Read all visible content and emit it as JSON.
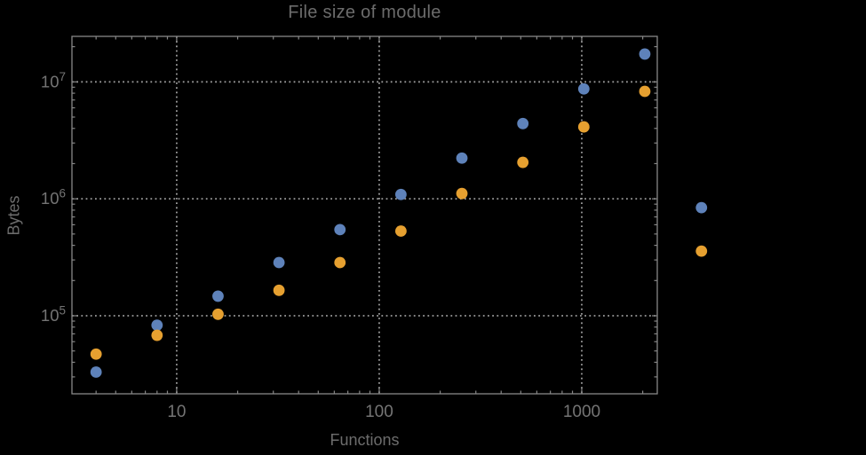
{
  "page": {
    "background": "#000000"
  },
  "chart_data": {
    "type": "scatter",
    "title": "File size of module",
    "xlabel": "Functions",
    "ylabel": "Bytes",
    "x_scale": "log",
    "y_scale": "log",
    "xlim": [
      3.04,
      2360
    ],
    "ylim": [
      21500,
      24500000
    ],
    "grid": {
      "style": "dotted",
      "x_values": [
        10,
        100,
        1000
      ],
      "y_values": [
        100000,
        1000000,
        10000000
      ],
      "color": "#9a9a9a"
    },
    "x_ticks": [
      {
        "value": 10,
        "label": "10"
      },
      {
        "value": 100,
        "label": "100"
      },
      {
        "value": 1000,
        "label": "1000"
      }
    ],
    "y_ticks": [
      {
        "value": 100000,
        "base": "10",
        "exponent": "5"
      },
      {
        "value": 1000000,
        "base": "10",
        "exponent": "6"
      },
      {
        "value": 10000000,
        "base": "10",
        "exponent": "7"
      }
    ],
    "legend": "none",
    "frame_color": "#878787",
    "tick_label_color": "#747474",
    "series": [
      {
        "name": "series-1-blue",
        "color": "#5e82ba",
        "points": [
          [
            4,
            33000
          ],
          [
            8,
            83000
          ],
          [
            16,
            147000
          ],
          [
            32,
            285000
          ],
          [
            64,
            545000
          ],
          [
            128,
            1090000
          ],
          [
            256,
            2230000
          ],
          [
            512,
            4400000
          ],
          [
            1024,
            8700000
          ],
          [
            2048,
            17300000
          ],
          [
            3900,
            840000
          ]
        ]
      },
      {
        "name": "series-2-orange",
        "color": "#e6a030",
        "points": [
          [
            4,
            47000
          ],
          [
            8,
            68000
          ],
          [
            16,
            103000
          ],
          [
            32,
            165000
          ],
          [
            64,
            285000
          ],
          [
            128,
            530000
          ],
          [
            256,
            1110000
          ],
          [
            512,
            2050000
          ],
          [
            1024,
            4120000
          ],
          [
            2048,
            8300000
          ],
          [
            3900,
            357000
          ]
        ]
      }
    ]
  }
}
